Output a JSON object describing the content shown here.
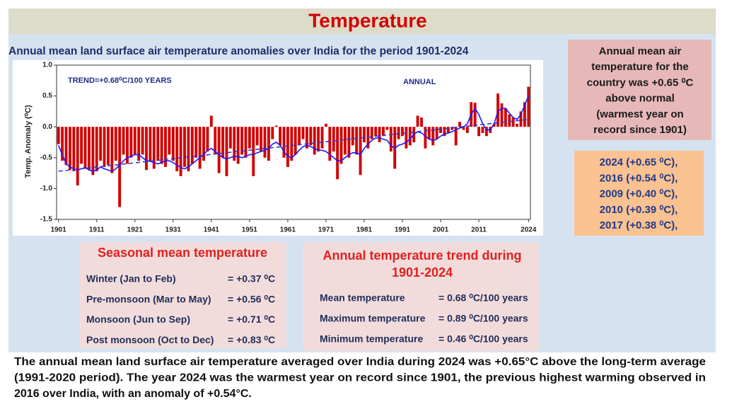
{
  "title": "Temperature",
  "chart_data": {
    "type": "bar",
    "title": "Annual mean land surface air temperature anomalies over India for the period 1901-2024",
    "ylabel": "Temp. Anomaly (⁰C)",
    "annotations": [
      "TREND=+0.68⁰C/100 YEARS",
      "ANNUAL"
    ],
    "xlim": [
      1900.5,
      2024.5
    ],
    "xticks": [
      1901,
      1911,
      1921,
      1931,
      1941,
      1951,
      1961,
      1971,
      1981,
      1991,
      2001,
      2011,
      2024
    ],
    "ylim": [
      -1.5,
      1.0
    ],
    "yticks": [
      -1.5,
      {
        "value": -1.0,
        "label": "-1.0"
      },
      -0.5,
      {
        "value": 0.0,
        "label": "0.0"
      },
      0.5,
      {
        "value": 1.0,
        "label": "1.0"
      }
    ],
    "grid": false,
    "x": [
      1901,
      1902,
      1903,
      1904,
      1905,
      1906,
      1907,
      1908,
      1909,
      1910,
      1911,
      1912,
      1913,
      1914,
      1915,
      1916,
      1917,
      1918,
      1919,
      1920,
      1921,
      1922,
      1923,
      1924,
      1925,
      1926,
      1927,
      1928,
      1929,
      1930,
      1931,
      1932,
      1933,
      1934,
      1935,
      1936,
      1937,
      1938,
      1939,
      1940,
      1941,
      1942,
      1943,
      1944,
      1945,
      1946,
      1947,
      1948,
      1949,
      1950,
      1951,
      1952,
      1953,
      1954,
      1955,
      1956,
      1957,
      1958,
      1959,
      1960,
      1961,
      1962,
      1963,
      1964,
      1965,
      1966,
      1967,
      1968,
      1969,
      1970,
      1971,
      1972,
      1973,
      1974,
      1975,
      1976,
      1977,
      1978,
      1979,
      1980,
      1981,
      1982,
      1983,
      1984,
      1985,
      1986,
      1987,
      1988,
      1989,
      1990,
      1991,
      1992,
      1993,
      1994,
      1995,
      1996,
      1997,
      1998,
      1999,
      2000,
      2001,
      2002,
      2003,
      2004,
      2005,
      2006,
      2007,
      2008,
      2009,
      2010,
      2011,
      2012,
      2013,
      2014,
      2015,
      2016,
      2017,
      2018,
      2019,
      2020,
      2021,
      2022,
      2023,
      2024
    ],
    "series": [
      {
        "type": "bar",
        "color": "#d00000",
        "values": [
          -0.28,
          -0.55,
          -0.62,
          -0.7,
          -0.72,
          -0.95,
          -0.6,
          -0.68,
          -0.7,
          -0.78,
          -0.72,
          -0.55,
          -0.65,
          -0.62,
          -0.75,
          -0.55,
          -1.3,
          -0.45,
          -0.6,
          -0.5,
          -0.45,
          -0.55,
          -0.45,
          -0.7,
          -0.55,
          -0.68,
          -0.55,
          -0.6,
          -0.65,
          -0.45,
          -0.55,
          -0.72,
          -0.8,
          -0.65,
          -0.72,
          -0.6,
          -0.5,
          -0.68,
          -0.55,
          -0.4,
          0.18,
          -0.45,
          -0.75,
          -0.5,
          -0.8,
          -0.35,
          -0.55,
          -0.6,
          -0.45,
          -0.5,
          -0.35,
          -0.8,
          -0.3,
          -0.4,
          -0.5,
          -0.55,
          -0.2,
          0.02,
          -0.3,
          -0.5,
          -0.65,
          -0.55,
          -0.45,
          -0.3,
          -0.2,
          -0.35,
          -0.3,
          -0.45,
          -0.4,
          -0.35,
          0.05,
          -0.55,
          -0.4,
          -0.85,
          -0.6,
          -0.45,
          -0.5,
          -0.3,
          -0.45,
          -0.78,
          -0.25,
          -0.35,
          -0.2,
          -0.15,
          -0.25,
          -0.15,
          -0.05,
          -0.4,
          -0.68,
          -0.2,
          -0.15,
          -0.35,
          -0.3,
          -0.25,
          0.18,
          0.15,
          -0.35,
          -0.2,
          -0.3,
          -0.2,
          -0.1,
          -0.15,
          -0.1,
          -0.05,
          -0.3,
          0.08,
          -0.05,
          -0.1,
          0.4,
          0.39,
          -0.15,
          -0.1,
          -0.15,
          -0.1,
          0.05,
          0.54,
          0.38,
          0.3,
          0.2,
          0.15,
          0.05,
          0.25,
          0.4,
          0.65
        ]
      },
      {
        "type": "line",
        "color": "#1a1aff",
        "values": [
          -0.3,
          -0.45,
          -0.6,
          -0.65,
          -0.68,
          -0.7,
          -0.68,
          -0.66,
          -0.7,
          -0.72,
          -0.7,
          -0.65,
          -0.68,
          -0.7,
          -0.72,
          -0.68,
          -0.62,
          -0.55,
          -0.5,
          -0.48,
          -0.45,
          -0.45,
          -0.5,
          -0.55,
          -0.56,
          -0.58,
          -0.6,
          -0.58,
          -0.55,
          -0.55,
          -0.58,
          -0.62,
          -0.66,
          -0.68,
          -0.65,
          -0.6,
          -0.55,
          -0.5,
          -0.45,
          -0.38,
          -0.35,
          -0.4,
          -0.45,
          -0.5,
          -0.52,
          -0.5,
          -0.48,
          -0.48,
          -0.5,
          -0.48,
          -0.45,
          -0.45,
          -0.42,
          -0.4,
          -0.38,
          -0.35,
          -0.28,
          -0.25,
          -0.3,
          -0.4,
          -0.48,
          -0.5,
          -0.45,
          -0.38,
          -0.32,
          -0.3,
          -0.32,
          -0.35,
          -0.38,
          -0.38,
          -0.4,
          -0.45,
          -0.5,
          -0.55,
          -0.55,
          -0.5,
          -0.45,
          -0.42,
          -0.42,
          -0.45,
          -0.35,
          -0.28,
          -0.22,
          -0.18,
          -0.18,
          -0.2,
          -0.22,
          -0.3,
          -0.35,
          -0.3,
          -0.28,
          -0.25,
          -0.2,
          -0.12,
          -0.08,
          -0.1,
          -0.15,
          -0.2,
          -0.22,
          -0.2,
          -0.15,
          -0.12,
          -0.1,
          -0.08,
          -0.05,
          -0.02,
          0.0,
          0.05,
          0.2,
          0.3,
          0.2,
          0.05,
          -0.05,
          -0.05,
          0.05,
          0.25,
          0.3,
          0.3,
          0.22,
          0.15,
          0.12,
          0.2,
          0.35,
          0.5
        ]
      },
      {
        "type": "line",
        "linestyle": "dashed",
        "color": "#2a3fd0",
        "x": [
          1901,
          2024
        ],
        "values": [
          -0.72,
          0.12
        ]
      }
    ]
  },
  "summary_box": {
    "lines": [
      "Annual mean air",
      "temperature for the",
      "country was +0.65 ⁰C",
      "above normal",
      "(warmest year on",
      "record since 1901)"
    ]
  },
  "warmest_years": [
    "2024 (+0.65 ⁰C),",
    "2016 (+0.54 ⁰C),",
    "2009 (+0.40 ⁰C),",
    "2010 (+0.39 ⁰C),",
    "2017 (+0.38 ⁰C),"
  ],
  "seasonal": {
    "title": "Seasonal mean temperature",
    "rows": [
      [
        "Winter (Jan to Feb)",
        "= +0.37 ⁰C"
      ],
      [
        "Pre-monsoon (Mar to May)",
        "= +0.56 ⁰C"
      ],
      [
        "Monsoon (Jun to Sep)",
        "= +0.71 ⁰C"
      ],
      [
        "Post monsoon (Oct to Dec)",
        "= +0.83 ⁰C"
      ]
    ]
  },
  "trend": {
    "title_lines": [
      "Annual temperature trend during",
      "1901-2024"
    ],
    "rows": [
      [
        "Mean temperature",
        "= 0.68 ⁰C/100 years"
      ],
      [
        "Maximum temperature",
        "= 0.89 ⁰C/100 years"
      ],
      [
        "Minimum temperature",
        "= 0.46 ⁰C/100 years"
      ]
    ]
  },
  "footer": {
    "lines": [
      "The annual mean land surface air temperature averaged over India during 2024 was +0.65°C above the long-term average",
      "(1991-2020 period). The year 2024 was the warmest year on record since 1901, the previous highest warming observed in",
      "2016 over India, with an anomaly of +0.54°C."
    ]
  }
}
